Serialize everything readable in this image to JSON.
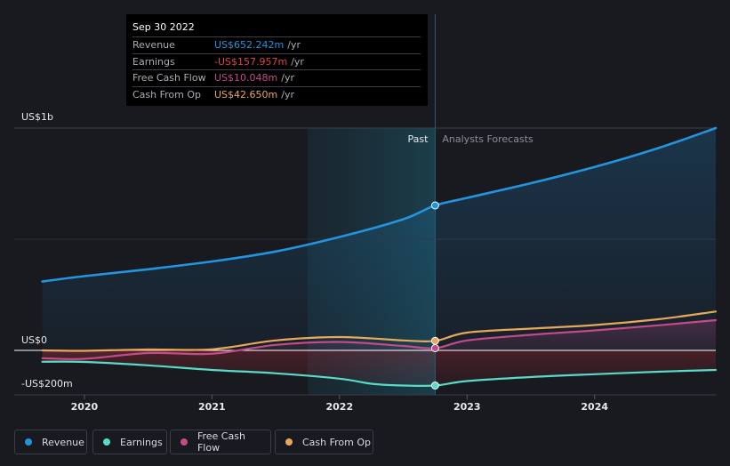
{
  "tooltip": {
    "date": "Sep 30 2022",
    "rows": [
      {
        "label": "Revenue",
        "value": "US$652.242m",
        "unit": "/yr",
        "color": "#2394df"
      },
      {
        "label": "Earnings",
        "value": "-US$157.957m",
        "unit": "/yr",
        "color": "#e0414c"
      },
      {
        "label": "Free Cash Flow",
        "value": "US$10.048m",
        "unit": "/yr",
        "color": "#c34b88"
      },
      {
        "label": "Cash From Op",
        "value": "US$42.650m",
        "unit": "/yr",
        "color": "#e8a85a"
      }
    ]
  },
  "legend": [
    {
      "label": "Revenue",
      "color": "#2394df"
    },
    {
      "label": "Earnings",
      "color": "#58dbc6"
    },
    {
      "label": "Free Cash Flow",
      "color": "#c34b88"
    },
    {
      "label": "Cash From Op",
      "color": "#e8a85a"
    }
  ],
  "chart_data": {
    "type": "line",
    "title": "",
    "xlabel": "",
    "ylabel": "",
    "y_tick_labels": [
      "US$1b",
      "US$0",
      "-US$200m"
    ],
    "ylim": [
      -200,
      1000
    ],
    "xlim": [
      2019.45,
      2024.95
    ],
    "x_ticks": [
      2020,
      2021,
      2022,
      2023,
      2024
    ],
    "x_tick_labels": [
      "2020",
      "2021",
      "2022",
      "2023",
      "2024"
    ],
    "past_label": "Past",
    "forecast_label": "Analysts Forecasts",
    "divider_x": 2022.75,
    "highlight_start_x": 2021.75,
    "series": [
      {
        "name": "Revenue",
        "color": "#2394df",
        "x": [
          2019.67,
          2020.0,
          2020.5,
          2021.0,
          2021.5,
          2022.0,
          2022.5,
          2022.75,
          2023.0,
          2023.5,
          2024.0,
          2024.5,
          2024.95
        ],
        "y": [
          310,
          334,
          365,
          400,
          445,
          510,
          590,
          652,
          686,
          752,
          825,
          910,
          1000
        ]
      },
      {
        "name": "Earnings",
        "color": "#58dbc6",
        "x": [
          2019.67,
          2020.0,
          2020.5,
          2021.0,
          2021.5,
          2022.0,
          2022.25,
          2022.5,
          2022.75,
          2023.0,
          2023.5,
          2024.0,
          2024.5,
          2024.95
        ],
        "y": [
          -51,
          -52,
          -67,
          -88,
          -103,
          -127,
          -150,
          -158,
          -158,
          -138,
          -120,
          -107,
          -96,
          -88
        ]
      },
      {
        "name": "Free Cash Flow",
        "color": "#c34b88",
        "x": [
          2019.67,
          2020.0,
          2020.5,
          2021.0,
          2021.5,
          2022.0,
          2022.5,
          2022.75,
          2023.0,
          2023.5,
          2024.0,
          2024.5,
          2024.95
        ],
        "y": [
          -35,
          -38,
          -12,
          -15,
          25,
          38,
          20,
          10,
          45,
          70,
          90,
          113,
          136
        ]
      },
      {
        "name": "Cash From Op",
        "color": "#e8a85a",
        "x": [
          2019.67,
          2020.0,
          2020.5,
          2021.0,
          2021.5,
          2022.0,
          2022.5,
          2022.75,
          2023.0,
          2023.5,
          2024.0,
          2024.5,
          2024.95
        ],
        "y": [
          0,
          -2,
          4,
          5,
          45,
          60,
          45,
          43,
          80,
          98,
          114,
          140,
          175
        ]
      }
    ]
  }
}
